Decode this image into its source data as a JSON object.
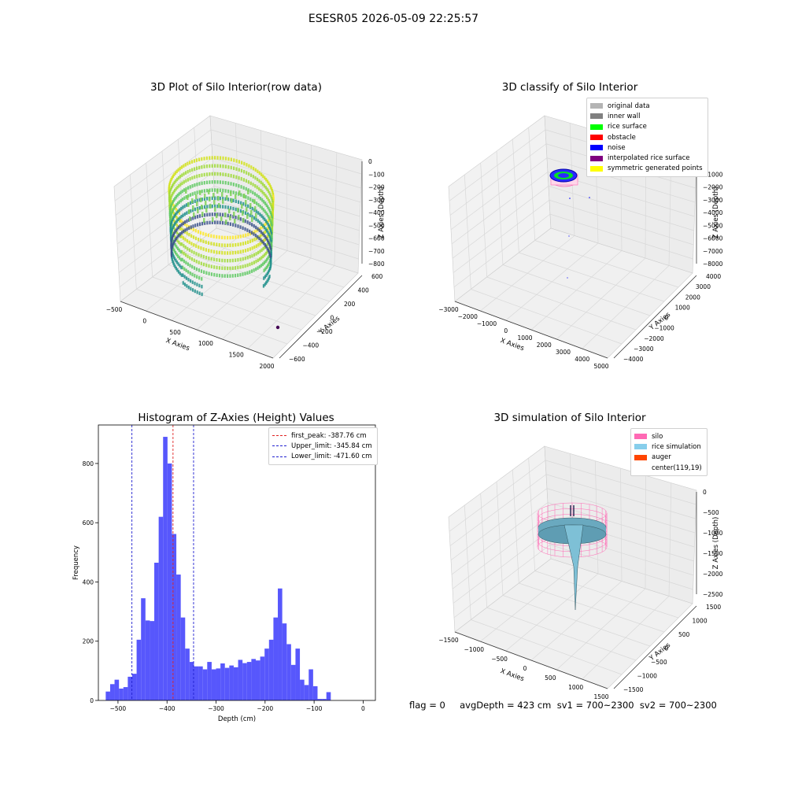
{
  "suptitle": "ESESR05 2026-05-09 22:25:57",
  "colors": {
    "hist_bar": "#4e4efc",
    "peak_line": "#e02020",
    "limit_line": "#2020d0",
    "grid": "#d8d8d8",
    "pane": "#f2f2f2"
  },
  "panel1": {
    "title": "3D Plot of Silo Interior(row data)",
    "xlabel": "X Axies",
    "ylabel": "Y Axies",
    "zlabel": "Z Axies (Depth)",
    "xticks": [
      "−500",
      "0",
      "500",
      "1000",
      "1500",
      "2000"
    ],
    "yticks": [
      "−600",
      "−400",
      "−200",
      "0",
      "200",
      "400",
      "600"
    ],
    "zticks": [
      "0",
      "−100",
      "−200",
      "−300",
      "−400",
      "−500",
      "−600",
      "−700",
      "−800"
    ]
  },
  "panel2": {
    "title": "3D classify of Silo Interior",
    "xlabel": "X Axies",
    "ylabel": "Y Axies",
    "zlabel": "Z Axies (Depth)",
    "xticks": [
      "−3000",
      "−2000",
      "−1000",
      "0",
      "1000",
      "2000",
      "3000",
      "4000",
      "5000"
    ],
    "yticks": [
      "−4000",
      "−3000",
      "−2000",
      "−1000",
      "0",
      "1000",
      "2000",
      "3000",
      "4000"
    ],
    "zticks": [
      "0",
      "−1000",
      "−2000",
      "−3000",
      "−4000",
      "−5000",
      "−6000",
      "−7000",
      "−8000"
    ],
    "legend": [
      {
        "label": "original data",
        "color": "#b4b4b4"
      },
      {
        "label": "inner wall",
        "color": "#808080"
      },
      {
        "label": "rice surface",
        "color": "#00ff00"
      },
      {
        "label": "obstacle",
        "color": "#ff0000"
      },
      {
        "label": "noise",
        "color": "#0000ff"
      },
      {
        "label": "interpolated rice surface",
        "color": "#800080"
      },
      {
        "label": "symmetric generated points",
        "color": "#ffff00"
      }
    ]
  },
  "panel4": {
    "title": "3D simulation of Silo Interior",
    "xlabel": "X Axies",
    "ylabel": "Y Axies",
    "zlabel": "Z Axies (Depth)",
    "xticks": [
      "−1500",
      "−1000",
      "−500",
      "0",
      "500",
      "1000",
      "1500"
    ],
    "yticks": [
      "−1500",
      "−1000",
      "−500",
      "0",
      "500",
      "1000",
      "1500"
    ],
    "zticks": [
      "0",
      "−500",
      "−1000",
      "−1500",
      "−2000",
      "−2500"
    ],
    "legend": [
      {
        "label": "silo",
        "color": "#ff69b4"
      },
      {
        "label": "rice simulation",
        "color": "#87ceeb"
      },
      {
        "label": "auger",
        "color": "#ff4500"
      },
      {
        "label": "center(119,19)",
        "color": ""
      }
    ]
  },
  "footer": "flag = 0     avgDepth = 423 cm  sv1 = 700~2300  sv2 = 700~2300",
  "chart_data": [
    {
      "type": "scatter",
      "title": "3D Plot of Silo Interior(row data)",
      "xlabel": "X Axies",
      "ylabel": "Y Axies",
      "zlabel": "Z Axies (Depth)",
      "xlim": [
        -600,
        2000
      ],
      "ylim": [
        -650,
        650
      ],
      "zlim": [
        -850,
        50
      ],
      "grid": true
    },
    {
      "type": "scatter",
      "title": "3D classify of Silo Interior",
      "xlabel": "X Axies",
      "ylabel": "Y Axies",
      "zlabel": "Z Axies (Depth)",
      "xlim": [
        -3500,
        5000
      ],
      "ylim": [
        -4200,
        4200
      ],
      "zlim": [
        -8500,
        0
      ],
      "series": [
        {
          "name": "original data"
        },
        {
          "name": "inner wall"
        },
        {
          "name": "rice surface"
        },
        {
          "name": "obstacle"
        },
        {
          "name": "noise"
        },
        {
          "name": "interpolated rice surface"
        },
        {
          "name": "symmetric generated points"
        }
      ],
      "legend": "top-right",
      "grid": true
    },
    {
      "type": "bar",
      "title": "Histogram of Z-Axies (Height) Values",
      "xlabel": "Depth (cm)",
      "ylabel": "Frequency",
      "xlim": [
        -540,
        25
      ],
      "ylim": [
        0,
        930
      ],
      "xticks": [
        -500,
        -400,
        -300,
        -200,
        -100,
        0
      ],
      "yticks": [
        0,
        200,
        400,
        600,
        800
      ],
      "bin_width": 9.0,
      "bin_start": -525,
      "values": [
        30,
        55,
        70,
        40,
        45,
        80,
        90,
        205,
        345,
        270,
        268,
        465,
        620,
        890,
        800,
        562,
        425,
        280,
        175,
        130,
        115,
        115,
        105,
        130,
        105,
        108,
        125,
        110,
        118,
        112,
        137,
        126,
        130,
        140,
        135,
        148,
        175,
        205,
        280,
        378,
        260,
        190,
        120,
        175,
        70,
        52,
        105,
        48,
        5,
        5,
        28
      ],
      "vlines": [
        {
          "label": "first_peak: -387.76 cm",
          "x": -387.76,
          "color": "#e02020"
        },
        {
          "label": "Upper_limit: -345.84 cm",
          "x": -345.84,
          "color": "#2020d0"
        },
        {
          "label": "Lower_limit: -471.60 cm",
          "x": -471.6,
          "color": "#2020d0"
        }
      ],
      "legend": "top-right"
    },
    {
      "type": "surface",
      "title": "3D simulation of Silo Interior",
      "xlabel": "X Axies",
      "ylabel": "Y Axies",
      "zlabel": "Z Axies (Depth)",
      "xlim": [
        -1600,
        1700
      ],
      "ylim": [
        -1600,
        1700
      ],
      "zlim": [
        -2800,
        200
      ],
      "series": [
        {
          "name": "silo"
        },
        {
          "name": "rice simulation"
        },
        {
          "name": "auger"
        },
        {
          "name": "center(119,19)"
        }
      ],
      "legend": "top-right",
      "grid": true
    }
  ]
}
